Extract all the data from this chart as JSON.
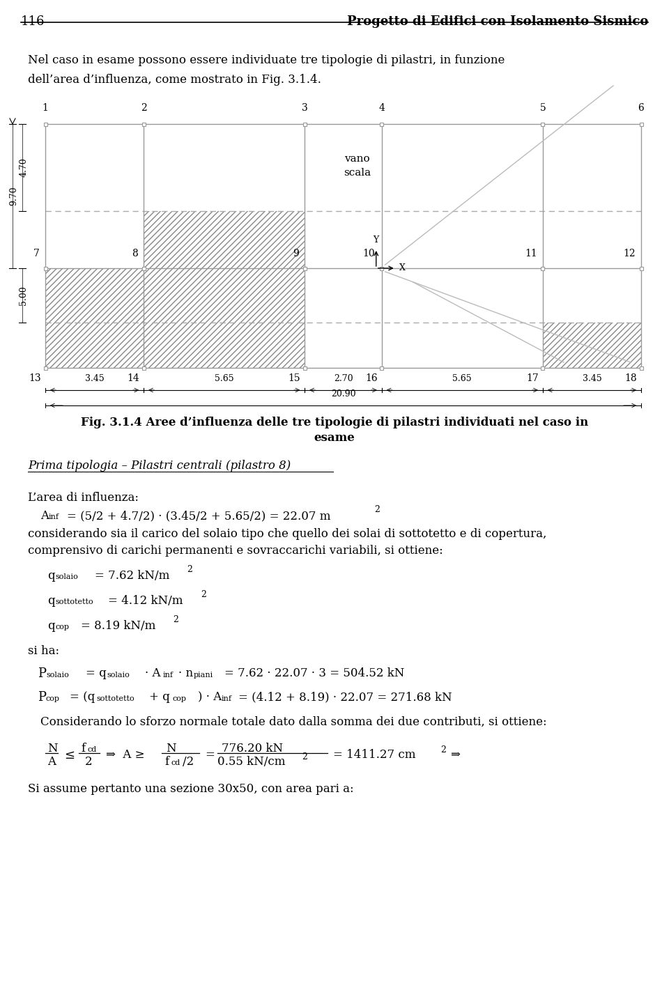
{
  "page_number": "116",
  "header_title": "Progetto di Edifici con Isolamento Sismico",
  "intro_text_1": "Nel caso in esame possono essere individuate tre tipologie di pilastri, in funzione",
  "intro_text_2": "dell’area d’influenza, come mostrato in Fig. 3.1.4.",
  "fig_caption_1": "Fig. 3.1.4 Aree d’influenza delle tre tipologie di pilastri individuati nel caso in",
  "fig_caption_2": "esame",
  "section_title": "Prima tipologia – Pilastri centrali (pilastro 8)",
  "last_line": "Si assume pertanto una sezione 30x50, con area pari a:",
  "background": "#ffffff",
  "grid_color": "#999999",
  "hatch_color": "#888888",
  "arrow_color": "#bbbbbb",
  "text_color": "#000000",
  "dashed_color": "#aaaaaa",
  "dims_x_real": [
    0,
    3.45,
    9.1,
    11.8,
    17.45,
    20.9
  ],
  "col_labels_top": [
    "1",
    "2",
    "3",
    "4",
    "5",
    "6"
  ],
  "mid_labels": [
    "7",
    "8",
    "9",
    "10",
    "11",
    "12"
  ],
  "bot_labels": [
    "13",
    "14",
    "15",
    "16",
    "17",
    "18"
  ],
  "dim_labels_h": [
    "3.45",
    "5.65",
    "2.70",
    "5.65",
    "3.45"
  ],
  "dim_total": "20.90",
  "dim_4_70": "4.70",
  "dim_9_70": "9.70",
  "dim_5_00": "5.00"
}
